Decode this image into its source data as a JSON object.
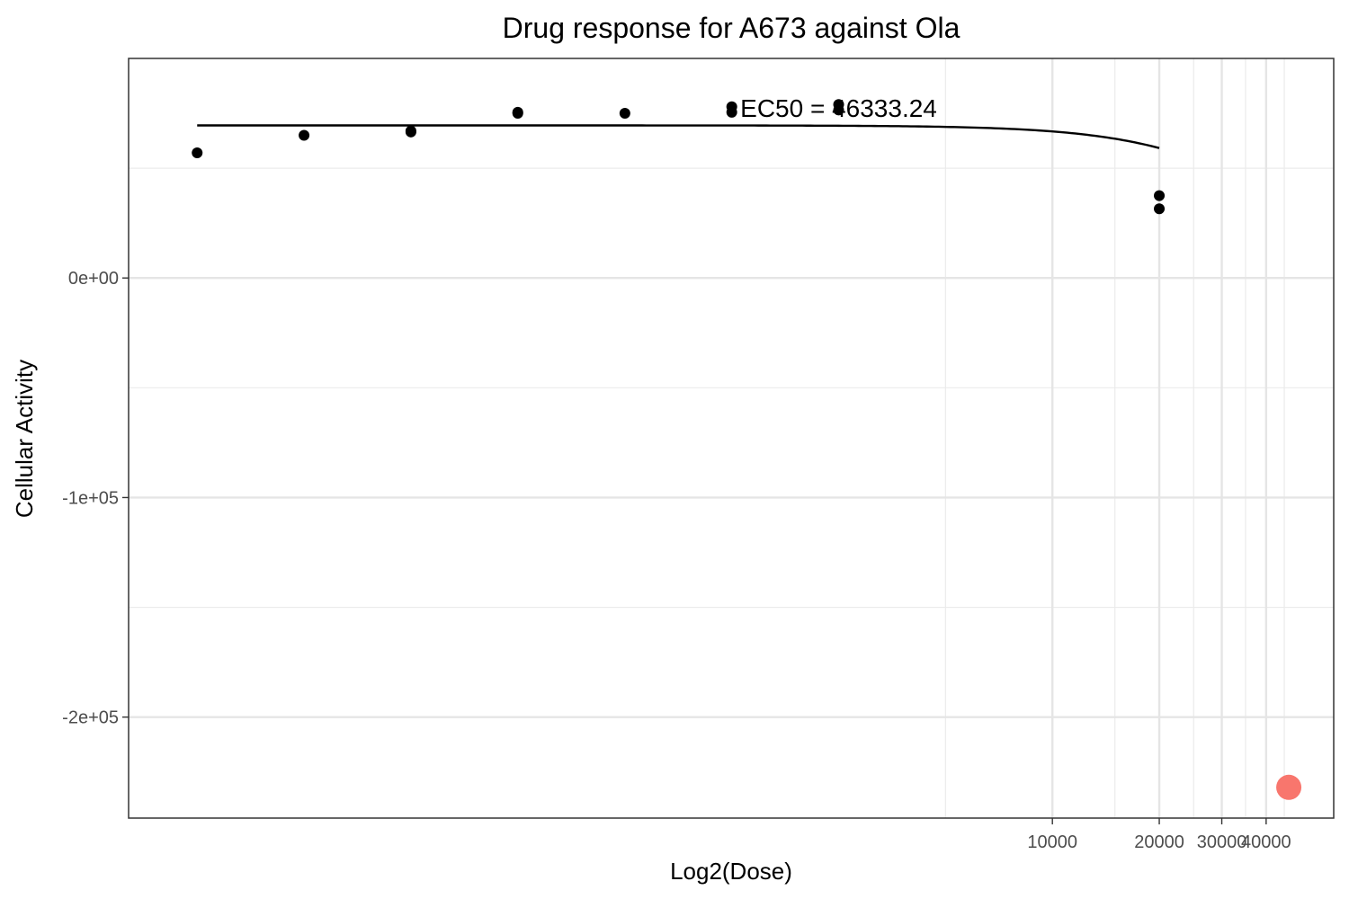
{
  "chart_data": {
    "type": "scatter",
    "title": "Drug response for A673 against Ola",
    "xlabel": "Log2(Dose)",
    "ylabel": "Cellular Activity",
    "x_scale": "log2",
    "xlim": [
      25,
      62000
    ],
    "ylim": [
      -246000,
      100000
    ],
    "grid": true,
    "x_ticks": [
      {
        "value": 10000,
        "label": "10000"
      },
      {
        "value": 20000,
        "label": "20000"
      },
      {
        "value": 30000,
        "label": "30000"
      },
      {
        "value": 40000,
        "label": "40000"
      }
    ],
    "y_ticks": [
      {
        "value": 0,
        "label": "0e+00"
      },
      {
        "value": -100000,
        "label": "-1e+05"
      },
      {
        "value": -200000,
        "label": "-2e+05"
      }
    ],
    "points": [
      {
        "x": 39,
        "y": 57000
      },
      {
        "x": 78,
        "y": 65000
      },
      {
        "x": 156,
        "y": 66500
      },
      {
        "x": 156,
        "y": 67000
      },
      {
        "x": 312,
        "y": 75000
      },
      {
        "x": 312,
        "y": 75500
      },
      {
        "x": 625,
        "y": 75000
      },
      {
        "x": 1250,
        "y": 75500
      },
      {
        "x": 1250,
        "y": 78000
      },
      {
        "x": 2500,
        "y": 76500
      },
      {
        "x": 2500,
        "y": 79000
      },
      {
        "x": 20000,
        "y": 37500
      },
      {
        "x": 20000,
        "y": 31500
      }
    ],
    "fit_curve": {
      "top": 69500,
      "bottom": 0,
      "ec50": 46333.24,
      "hill": 2.08,
      "x_range": [
        39,
        20000
      ]
    },
    "ec50_marker": {
      "x": 46333.24,
      "y": -232000,
      "color": "#f8766d"
    },
    "annotations": [
      {
        "text": "EC50 = 46333.24",
        "x": 2500,
        "y": 77500
      }
    ]
  }
}
